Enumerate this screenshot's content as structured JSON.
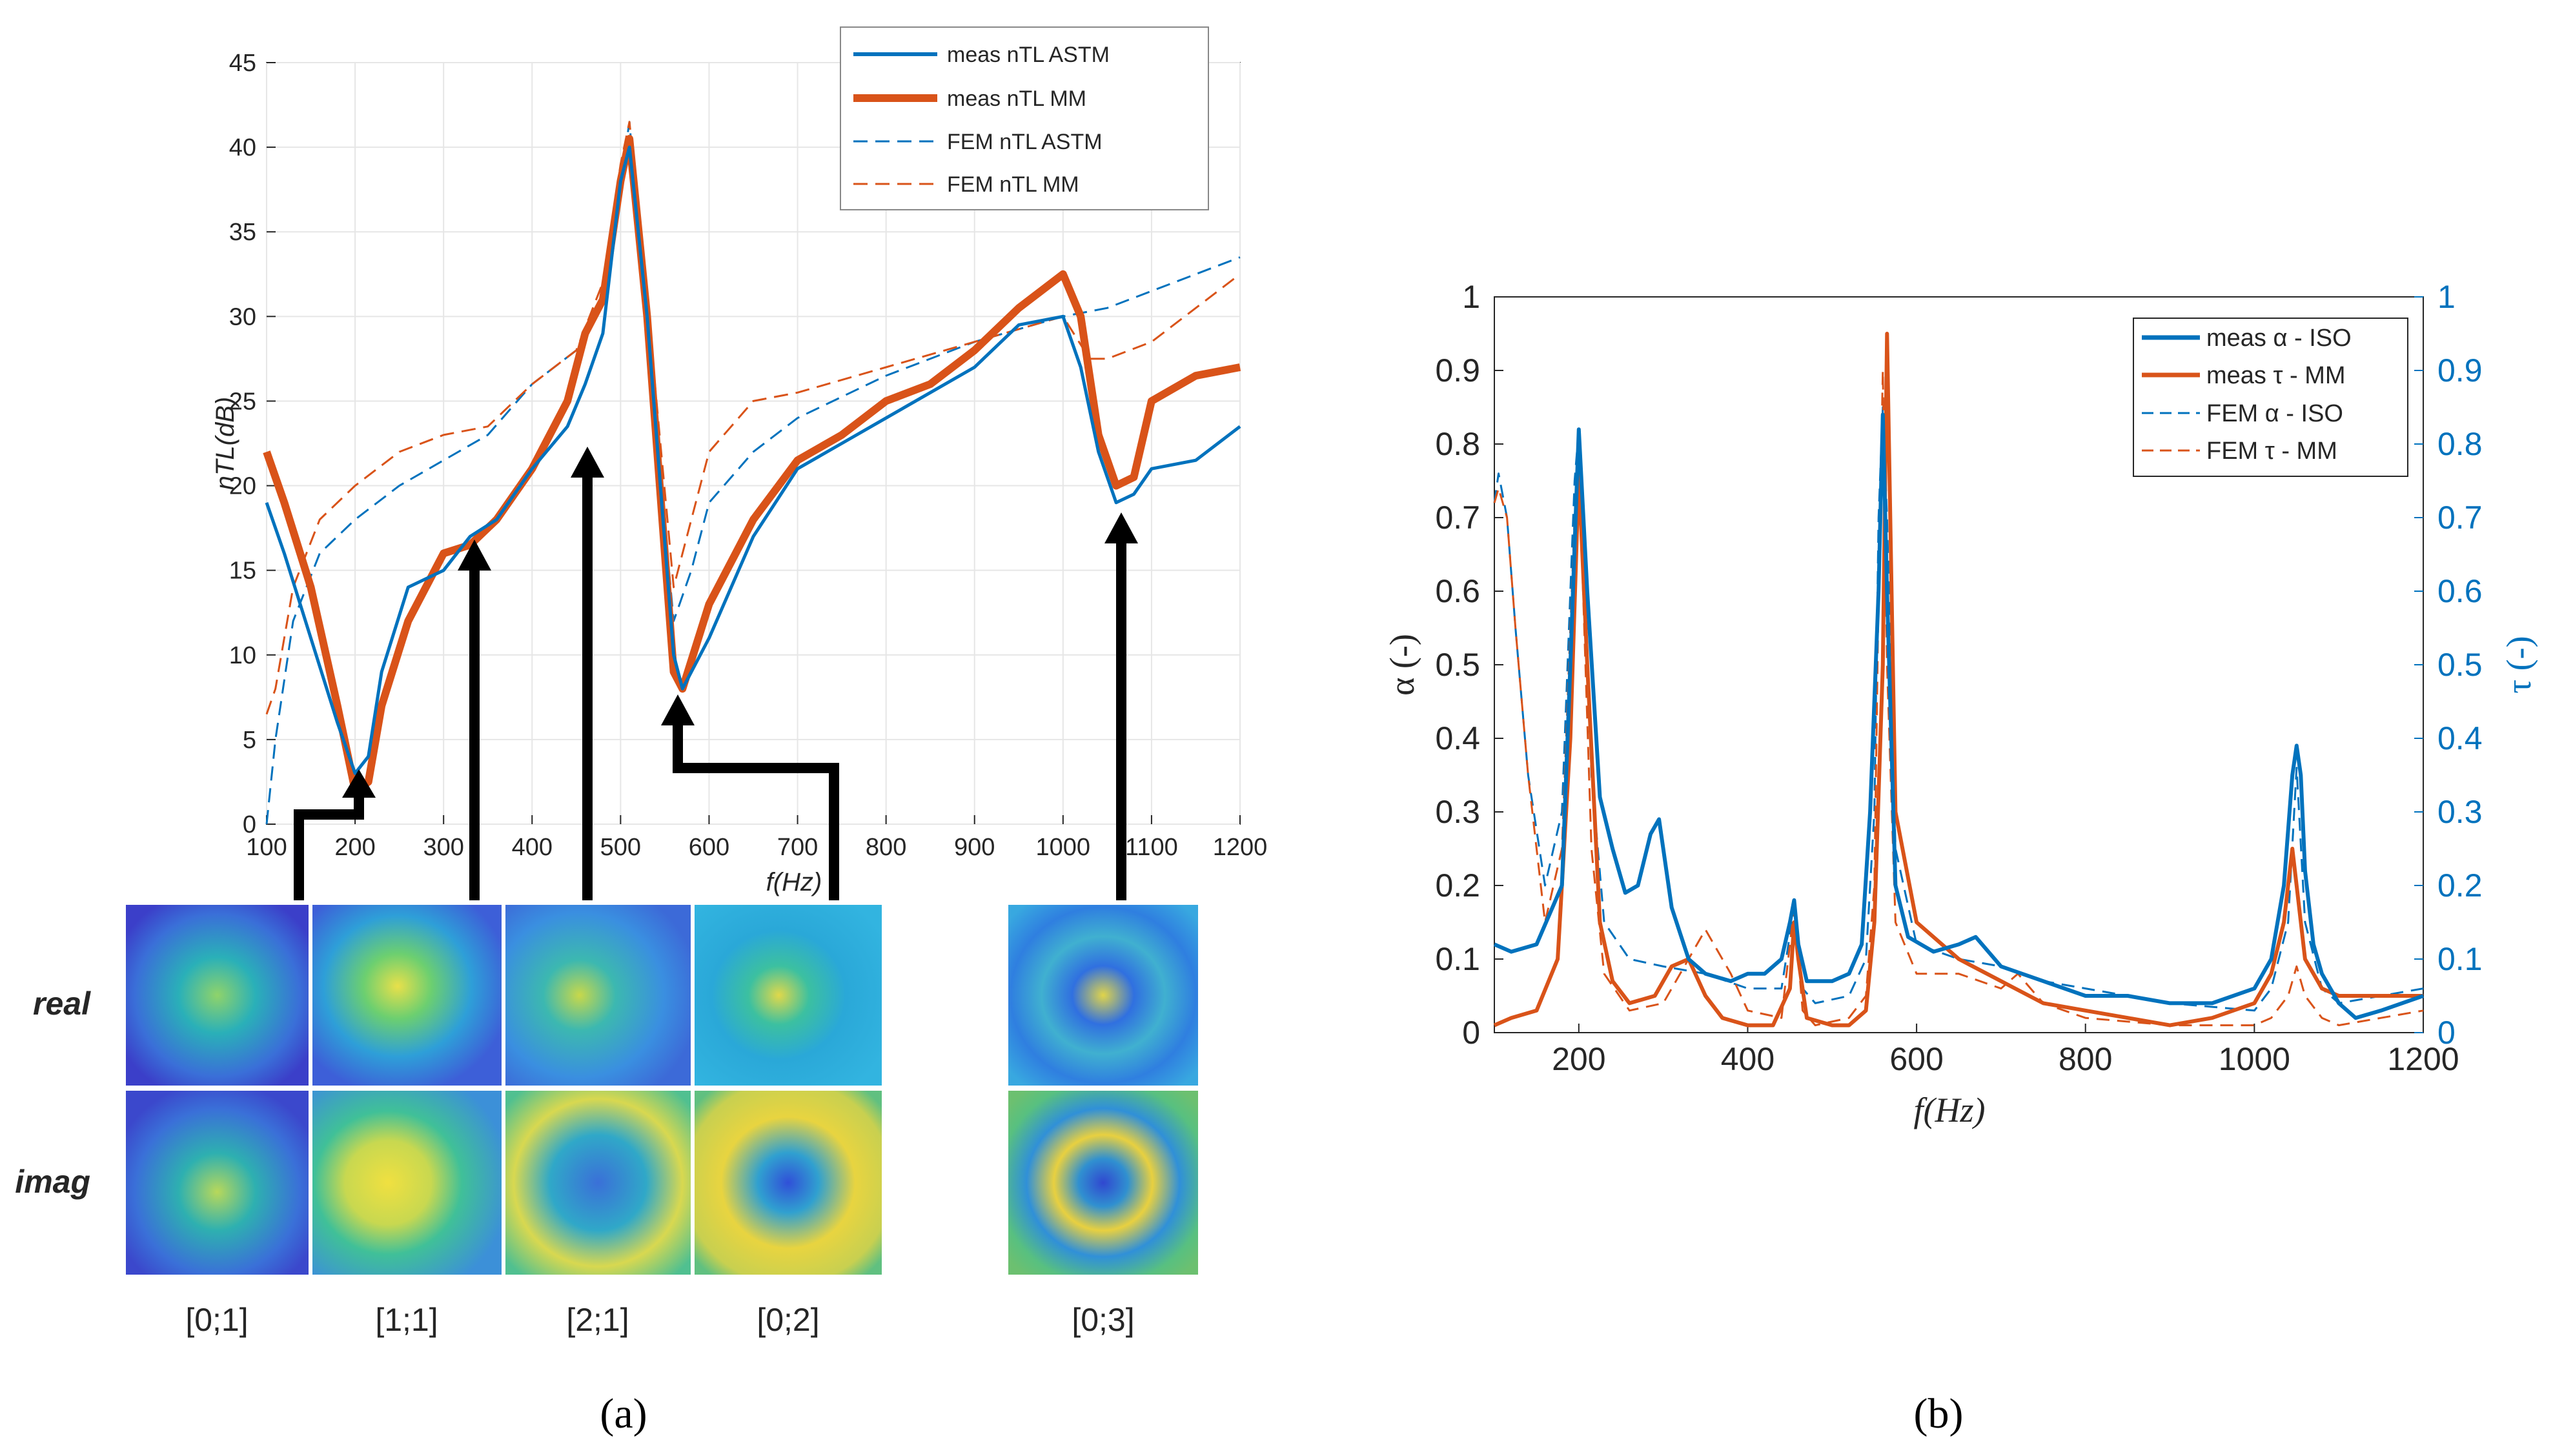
{
  "chart_data": [
    {
      "panel": "a",
      "panel_label": "(a)",
      "type": "line",
      "xlabel": "f(Hz)",
      "ylabel": "nTL(dB)",
      "xlim": [
        100,
        1200
      ],
      "ylim": [
        0,
        45
      ],
      "xticks": [
        100,
        200,
        300,
        400,
        500,
        600,
        700,
        800,
        900,
        1000,
        1100,
        1200
      ],
      "yticks": [
        0,
        5,
        10,
        15,
        20,
        25,
        30,
        35,
        40,
        45
      ],
      "grid": true,
      "legend_position": "top-right",
      "colors": {
        "blue": "#0072BD",
        "orange": "#D95319"
      },
      "series": [
        {
          "name": "meas  nTL ASTM",
          "style": "solid-thin",
          "color": "blue",
          "x": [
            100,
            120,
            150,
            180,
            200,
            215,
            230,
            260,
            300,
            330,
            360,
            400,
            440,
            460,
            480,
            500,
            510,
            530,
            560,
            570,
            600,
            650,
            700,
            750,
            800,
            850,
            900,
            950,
            1000,
            1020,
            1040,
            1060,
            1080,
            1100,
            1150,
            1200
          ],
          "y": [
            19,
            16,
            11,
            6,
            3,
            4,
            9,
            14,
            15,
            17,
            18,
            21,
            23.5,
            26,
            29,
            38,
            40,
            30,
            10,
            8,
            11,
            17,
            21,
            22.5,
            24,
            25.5,
            27,
            29.5,
            30,
            27,
            22,
            19,
            19.5,
            21,
            21.5,
            23.5
          ]
        },
        {
          "name": "meas  nTL MM",
          "style": "solid-thick",
          "color": "orange",
          "x": [
            100,
            120,
            150,
            180,
            200,
            215,
            230,
            260,
            300,
            330,
            360,
            400,
            440,
            460,
            480,
            500,
            510,
            530,
            560,
            570,
            600,
            650,
            700,
            750,
            800,
            850,
            900,
            950,
            1000,
            1020,
            1040,
            1060,
            1080,
            1100,
            1150,
            1200
          ],
          "y": [
            22,
            19,
            14,
            7,
            2,
            2.5,
            7,
            12,
            16,
            16.5,
            18,
            21,
            25,
            29,
            31,
            38,
            40.5,
            30,
            9,
            8,
            13,
            18,
            21.5,
            23,
            25,
            26,
            28,
            30.5,
            32.5,
            30,
            23,
            20,
            20.5,
            25,
            26.5,
            27
          ]
        },
        {
          "name": "FEM  nTL ASTM",
          "style": "dashed",
          "color": "blue",
          "x": [
            100,
            110,
            130,
            160,
            200,
            250,
            300,
            350,
            400,
            450,
            480,
            500,
            510,
            530,
            560,
            580,
            600,
            650,
            700,
            800,
            900,
            1000,
            1050,
            1100,
            1150,
            1200
          ],
          "y": [
            0,
            5,
            12,
            16,
            18,
            20,
            21.5,
            23,
            26,
            28,
            31,
            38,
            41.5,
            29,
            12,
            15,
            19,
            22,
            24,
            26.5,
            28.5,
            30,
            30.5,
            31.5,
            32.5,
            33.5
          ]
        },
        {
          "name": "FEM  nTL MM",
          "style": "dashed",
          "color": "orange",
          "x": [
            100,
            110,
            130,
            160,
            200,
            250,
            300,
            350,
            400,
            450,
            480,
            500,
            510,
            530,
            560,
            580,
            600,
            650,
            700,
            800,
            900,
            1000,
            1030,
            1050,
            1100,
            1150,
            1200
          ],
          "y": [
            6.5,
            8,
            14,
            18,
            20,
            22,
            23,
            23.5,
            26,
            28,
            32,
            39,
            41.5,
            31,
            14,
            18,
            22,
            25,
            25.5,
            27,
            28.5,
            30,
            27.5,
            27.5,
            28.5,
            30.5,
            32.5
          ]
        }
      ],
      "annotations": [
        {
          "mode": "[0;1]",
          "f": 210,
          "nTL": 2
        },
        {
          "mode": "[1;1]",
          "f": 345,
          "nTL": 16.5
        },
        {
          "mode": "[2;1]",
          "f": 460,
          "nTL": 22.5
        },
        {
          "mode": "[0;2]",
          "f": 565,
          "nTL": 7.5
        },
        {
          "mode": "[0;3]",
          "f": 1075,
          "nTL": 18
        }
      ],
      "mode_shapes": {
        "rows": [
          "real",
          "imag"
        ],
        "modes": [
          "[0;1]",
          "[1;1]",
          "[2;1]",
          "[0;2]",
          "[0;3]"
        ]
      }
    },
    {
      "panel": "b",
      "panel_label": "(b)",
      "type": "line",
      "xlabel": "f(Hz)",
      "ylabel_left": "α (-)",
      "ylabel_right": "τ (-)",
      "xlim": [
        100,
        1200
      ],
      "ylim": [
        0,
        1
      ],
      "xticks": [
        200,
        400,
        600,
        800,
        1000,
        1200
      ],
      "yticks": [
        0,
        0.1,
        0.2,
        0.3,
        0.4,
        0.5,
        0.6,
        0.7,
        0.8,
        0.9,
        1
      ],
      "ytick_labels": [
        "0",
        "0.1",
        "0.2",
        "0.3",
        "0.4",
        "0.5",
        "0.6",
        "0.7",
        "0.8",
        "0.9",
        "1"
      ],
      "grid": false,
      "legend_position": "top-right",
      "series": [
        {
          "name": "meas α - ISO",
          "style": "solid-thick",
          "color": "blue",
          "x": [
            100,
            120,
            150,
            180,
            190,
            200,
            210,
            225,
            240,
            255,
            270,
            285,
            295,
            310,
            330,
            350,
            380,
            400,
            420,
            440,
            450,
            455,
            460,
            470,
            500,
            520,
            535,
            545,
            555,
            560,
            565,
            575,
            590,
            620,
            650,
            670,
            700,
            750,
            800,
            850,
            900,
            950,
            1000,
            1020,
            1035,
            1045,
            1050,
            1055,
            1060,
            1070,
            1080,
            1100,
            1120,
            1150,
            1200
          ],
          "y": [
            0.12,
            0.11,
            0.12,
            0.2,
            0.5,
            0.82,
            0.6,
            0.32,
            0.25,
            0.19,
            0.2,
            0.27,
            0.29,
            0.17,
            0.1,
            0.08,
            0.07,
            0.08,
            0.08,
            0.1,
            0.15,
            0.18,
            0.12,
            0.07,
            0.07,
            0.08,
            0.12,
            0.3,
            0.6,
            0.84,
            0.6,
            0.2,
            0.13,
            0.11,
            0.12,
            0.13,
            0.09,
            0.07,
            0.05,
            0.05,
            0.04,
            0.04,
            0.06,
            0.1,
            0.2,
            0.35,
            0.39,
            0.35,
            0.22,
            0.12,
            0.08,
            0.04,
            0.02,
            0.03,
            0.05
          ]
        },
        {
          "name": "meas τ - MM",
          "style": "solid-thick",
          "color": "orange",
          "x": [
            100,
            120,
            150,
            175,
            190,
            200,
            210,
            225,
            240,
            260,
            290,
            310,
            330,
            350,
            370,
            400,
            430,
            450,
            455,
            460,
            470,
            500,
            520,
            540,
            550,
            560,
            565,
            575,
            600,
            650,
            700,
            750,
            800,
            850,
            900,
            950,
            1000,
            1020,
            1035,
            1045,
            1050,
            1060,
            1080,
            1100,
            1150,
            1200
          ],
          "y": [
            0.01,
            0.02,
            0.03,
            0.1,
            0.4,
            0.76,
            0.5,
            0.15,
            0.07,
            0.04,
            0.05,
            0.09,
            0.1,
            0.05,
            0.02,
            0.01,
            0.01,
            0.06,
            0.15,
            0.1,
            0.02,
            0.01,
            0.01,
            0.03,
            0.15,
            0.5,
            0.95,
            0.3,
            0.15,
            0.1,
            0.07,
            0.04,
            0.03,
            0.02,
            0.01,
            0.02,
            0.04,
            0.08,
            0.15,
            0.25,
            0.2,
            0.1,
            0.06,
            0.05,
            0.05,
            0.05
          ]
        },
        {
          "name": "FEM α - ISO",
          "style": "dashed",
          "color": "blue",
          "x": [
            100,
            105,
            115,
            125,
            140,
            160,
            180,
            195,
            200,
            205,
            215,
            230,
            260,
            300,
            350,
            400,
            440,
            455,
            465,
            480,
            520,
            540,
            550,
            555,
            560,
            565,
            575,
            600,
            650,
            700,
            750,
            800,
            900,
            1000,
            1020,
            1040,
            1050,
            1060,
            1080,
            1100,
            1150,
            1200
          ],
          "y": [
            0.72,
            0.76,
            0.7,
            0.55,
            0.35,
            0.2,
            0.3,
            0.75,
            0.82,
            0.7,
            0.35,
            0.15,
            0.1,
            0.09,
            0.08,
            0.06,
            0.06,
            0.17,
            0.06,
            0.04,
            0.05,
            0.1,
            0.3,
            0.7,
            0.85,
            0.7,
            0.25,
            0.12,
            0.1,
            0.09,
            0.07,
            0.06,
            0.04,
            0.03,
            0.06,
            0.15,
            0.36,
            0.15,
            0.06,
            0.04,
            0.05,
            0.06
          ]
        },
        {
          "name": "FEM τ - MM",
          "style": "dashed",
          "color": "orange",
          "x": [
            100,
            105,
            115,
            125,
            140,
            160,
            180,
            195,
            200,
            205,
            215,
            230,
            260,
            300,
            320,
            350,
            380,
            400,
            440,
            455,
            465,
            480,
            520,
            540,
            550,
            555,
            560,
            565,
            575,
            600,
            650,
            700,
            720,
            750,
            800,
            900,
            1000,
            1020,
            1040,
            1050,
            1060,
            1080,
            1100,
            1150,
            1200
          ],
          "y": [
            0.72,
            0.74,
            0.7,
            0.55,
            0.35,
            0.15,
            0.25,
            0.7,
            0.76,
            0.6,
            0.25,
            0.08,
            0.03,
            0.04,
            0.08,
            0.14,
            0.08,
            0.03,
            0.02,
            0.17,
            0.03,
            0.01,
            0.02,
            0.05,
            0.2,
            0.6,
            0.9,
            0.5,
            0.15,
            0.08,
            0.08,
            0.06,
            0.08,
            0.04,
            0.02,
            0.01,
            0.01,
            0.02,
            0.05,
            0.09,
            0.05,
            0.02,
            0.01,
            0.02,
            0.03
          ]
        }
      ]
    }
  ]
}
